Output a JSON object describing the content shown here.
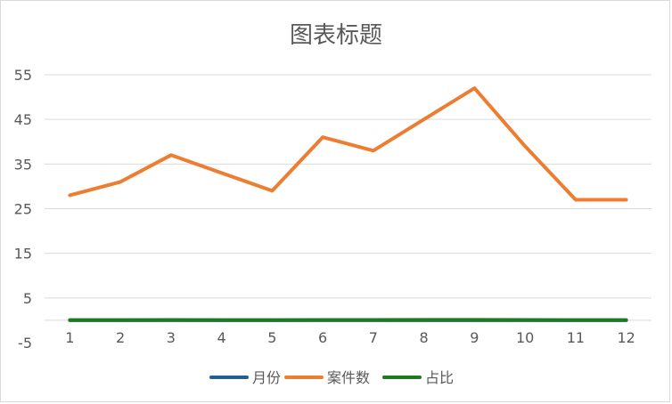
{
  "chart_data": {
    "type": "line",
    "title": "图表标题",
    "xlabel": "",
    "ylabel": "",
    "categories": [
      "1",
      "2",
      "3",
      "4",
      "5",
      "6",
      "7",
      "8",
      "9",
      "10",
      "11",
      "12"
    ],
    "yticks": [
      -5,
      5,
      15,
      25,
      35,
      45,
      55
    ],
    "ylim": [
      -5,
      55
    ],
    "grid": true,
    "legend_position": "bottom",
    "series": [
      {
        "name": "月份",
        "color": "#255e91",
        "values": [
          0,
          0,
          0,
          0,
          0,
          0,
          0,
          0,
          0,
          0,
          0,
          0
        ]
      },
      {
        "name": "案件数",
        "color": "#ed7d31",
        "values": [
          28,
          31,
          37,
          33,
          29,
          41,
          38,
          45,
          52,
          39,
          27,
          27
        ]
      },
      {
        "name": "占比",
        "color": "#1e7a1e",
        "values": [
          0.06,
          0.07,
          0.08,
          0.07,
          0.07,
          0.09,
          0.08,
          0.1,
          0.11,
          0.09,
          0.06,
          0.06
        ]
      }
    ]
  }
}
